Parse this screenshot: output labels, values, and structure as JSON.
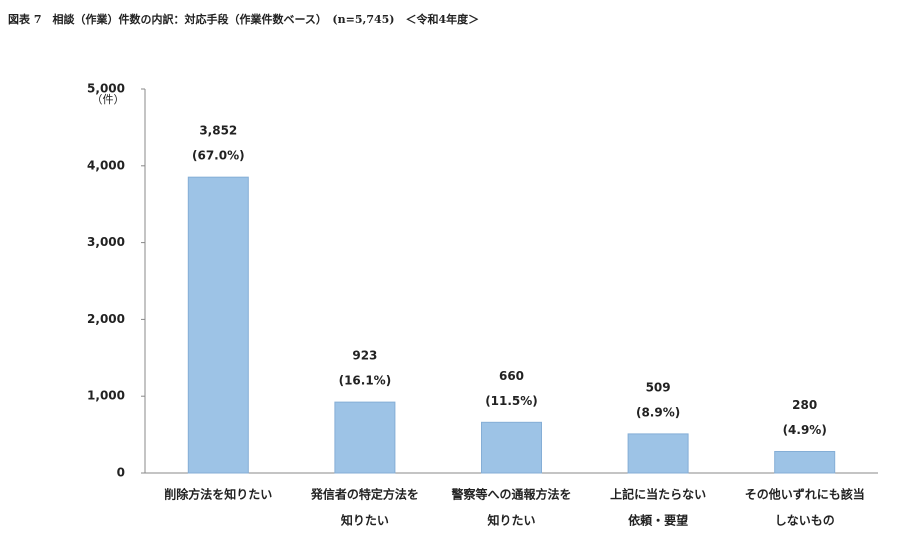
{
  "chart_data": {
    "type": "bar",
    "title": "図表 7　相談（作業）件数の内訳：対応手段（作業件数ベース）　(n=5,745)　＜令和4年度＞",
    "y_unit": "（件）",
    "categories": [
      [
        "削除方法を知りたい"
      ],
      [
        "発信者の特定方法を",
        "知りたい"
      ],
      [
        "警察等への通報方法を",
        "知りたい"
      ],
      [
        "上記に当たらない",
        "依頼・要望"
      ],
      [
        "その他いずれにも該当",
        "しないもの"
      ]
    ],
    "values": [
      3852,
      923,
      660,
      509,
      280
    ],
    "value_labels": [
      "3,852",
      "923",
      "660",
      "509",
      "280"
    ],
    "share_labels": [
      "(67.0%)",
      "(16.1%)",
      "(11.5%)",
      "(8.9%)",
      "(4.9%)"
    ],
    "color": "#9dc3e6",
    "ylim": [
      0,
      5000
    ],
    "yticks": [
      0,
      {
        "value": 1000,
        "label": "1,000"
      },
      {
        "value": 2000,
        "label": "2,000"
      },
      {
        "value": 3000,
        "label": "3,000"
      },
      {
        "value": 4000,
        "label": "4,000"
      },
      {
        "value": 5000,
        "label": "5,000"
      }
    ],
    "grid": false
  }
}
